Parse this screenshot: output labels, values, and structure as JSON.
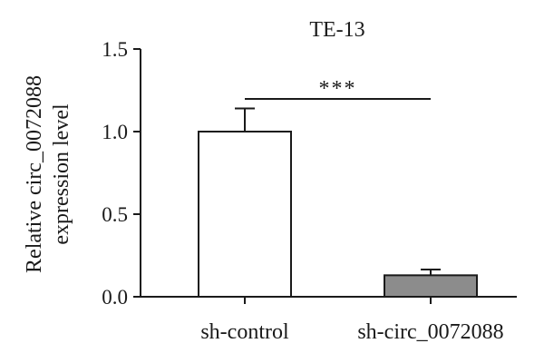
{
  "chart_data": {
    "type": "bar",
    "title": "TE-13",
    "ylabel_lines": [
      "Relative circ_0072088",
      "expression level"
    ],
    "xlabel": "",
    "categories": [
      "sh-control",
      "sh-circ_0072088"
    ],
    "values": [
      1.0,
      0.13
    ],
    "error_upper": [
      1.14,
      0.165
    ],
    "bar_colors": [
      "#ffffff",
      "#8c8c8c"
    ],
    "ylim": [
      0,
      1.5
    ],
    "yticks": [
      0.0,
      0.5,
      1.0,
      1.5
    ],
    "ytick_labels": [
      "0.0",
      "0.5",
      "1.0",
      "1.5"
    ],
    "grid": false,
    "significance": {
      "label": "***",
      "between": [
        0,
        1
      ],
      "level": 1.2
    }
  }
}
